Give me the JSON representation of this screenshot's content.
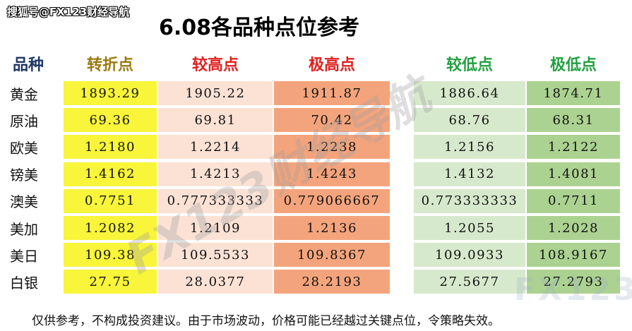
{
  "header": {
    "source": "搜狐号@FX123财经导航",
    "title": "6.08各品种点位参考"
  },
  "table": {
    "columns": [
      "品种",
      "转折点",
      "较高点",
      "极高点",
      "较低点",
      "极低点"
    ],
    "rows": [
      [
        "黄金",
        "1893.29",
        "1905.22",
        "1911.87",
        "1886.64",
        "1874.71"
      ],
      [
        "原油",
        "69.36",
        "69.81",
        "70.42",
        "68.76",
        "68.31"
      ],
      [
        "欧美",
        "1.2180",
        "1.2214",
        "1.2238",
        "1.2156",
        "1.2122"
      ],
      [
        "镑美",
        "1.4162",
        "1.4213",
        "1.4243",
        "1.4132",
        "1.4081"
      ],
      [
        "澳美",
        "0.7751",
        "0.777333333",
        "0.779066667",
        "0.773333333",
        "0.7711"
      ],
      [
        "美加",
        "1.2082",
        "1.2109",
        "1.2136",
        "1.2055",
        "1.2028"
      ],
      [
        "美日",
        "109.38",
        "109.5533",
        "109.8367",
        "109.0933",
        "108.9167"
      ],
      [
        "白银",
        "27.75",
        "28.0377",
        "28.2193",
        "27.5677",
        "27.2793"
      ]
    ]
  },
  "watermark": "FX123财经导航",
  "watermark_logo": "FX123",
  "footer": {
    "note": "仅供参考，不构成投资建议。由于市场波动，价格可能已经越过关键点位，令策略失效。"
  }
}
